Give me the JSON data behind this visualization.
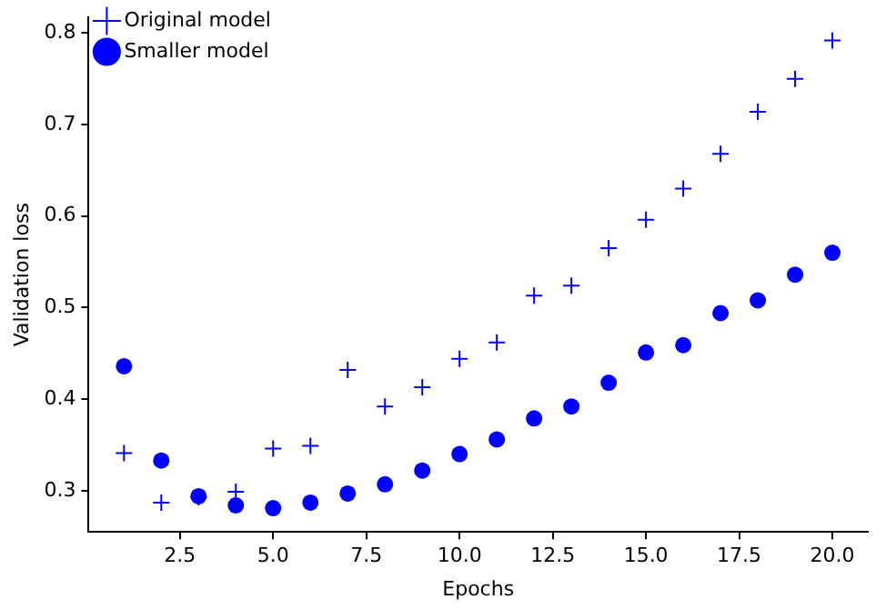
{
  "chart_data": {
    "type": "scatter",
    "xlabel": "Epochs",
    "ylabel": "Validation loss",
    "x": [
      1,
      2,
      3,
      4,
      5,
      6,
      7,
      8,
      9,
      10,
      11,
      12,
      13,
      14,
      15,
      16,
      17,
      18,
      19,
      20
    ],
    "series": [
      {
        "name": "Original model",
        "color": "#0000ff",
        "marker": "cross",
        "values": [
          0.341,
          0.287,
          0.293,
          0.299,
          0.346,
          0.349,
          0.432,
          0.392,
          0.413,
          0.444,
          0.462,
          0.513,
          0.524,
          0.565,
          0.596,
          0.63,
          0.668,
          0.714,
          0.75,
          0.792
        ]
      },
      {
        "name": "Smaller model",
        "color": "#0000ff",
        "marker": "circle",
        "values": [
          0.436,
          0.333,
          0.294,
          0.284,
          0.281,
          0.287,
          0.297,
          0.307,
          0.322,
          0.34,
          0.356,
          0.379,
          0.392,
          0.418,
          0.451,
          0.459,
          0.494,
          0.508,
          0.536,
          0.56
        ]
      }
    ],
    "xlim": [
      0.05,
      20.95
    ],
    "ylim": [
      0.255,
      0.817
    ],
    "xticks": [
      {
        "value": 2.5,
        "label": "2.5"
      },
      {
        "value": 5,
        "label": "5.0"
      },
      {
        "value": 7.5,
        "label": "7.5"
      },
      {
        "value": 10,
        "label": "10.0"
      },
      {
        "value": 12.5,
        "label": "12.5"
      },
      {
        "value": 15,
        "label": "15.0"
      },
      {
        "value": 17.5,
        "label": "17.5"
      },
      {
        "value": 20,
        "label": "20.0"
      }
    ],
    "yticks": [
      0.3,
      0.4,
      0.5,
      0.6,
      0.7,
      0.8
    ],
    "legend": "top left",
    "grid": false
  }
}
